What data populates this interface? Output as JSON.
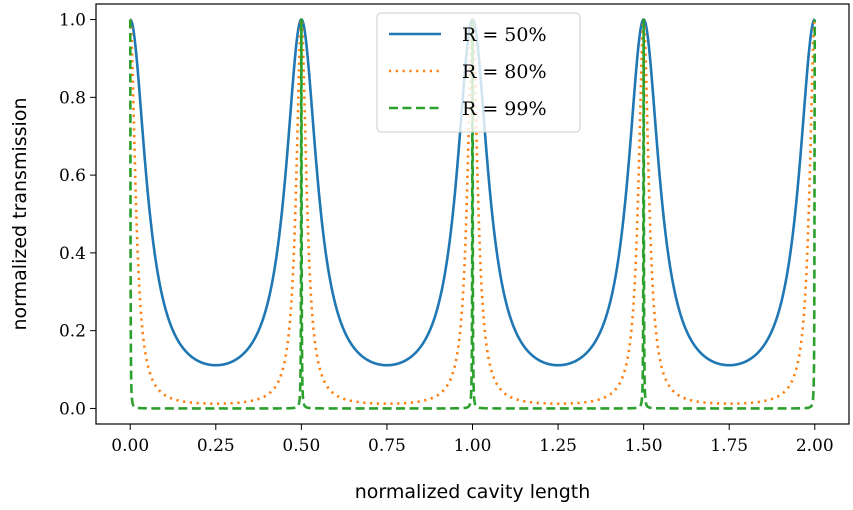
{
  "chart_data": {
    "type": "line",
    "title": "",
    "xlabel": "normalized cavity length",
    "ylabel": "normalized transmission",
    "xlim": [
      -0.1,
      2.1
    ],
    "ylim": [
      -0.04,
      1.04
    ],
    "xticks": [
      "0.00",
      "0.25",
      "0.50",
      "0.75",
      "1.00",
      "1.25",
      "1.50",
      "1.75",
      "2.00"
    ],
    "yticks": [
      "0.0",
      "0.2",
      "0.4",
      "0.6",
      "0.8",
      "1.0"
    ],
    "grid": false,
    "legend_position": "top-center",
    "x_range": [
      0,
      2
    ],
    "period": 0.5,
    "series": [
      {
        "name": "R = 50%",
        "reflectivity": 0.5,
        "color": "#1f77b4",
        "style": "solid",
        "minimum": 0.111
      },
      {
        "name": "R = 80%",
        "reflectivity": 0.8,
        "color": "#ff7f0e",
        "style": "dotted",
        "minimum": 0.012
      },
      {
        "name": "R = 99%",
        "reflectivity": 0.99,
        "color": "#2ca02c",
        "style": "dashed",
        "minimum": 3e-05
      }
    ]
  }
}
